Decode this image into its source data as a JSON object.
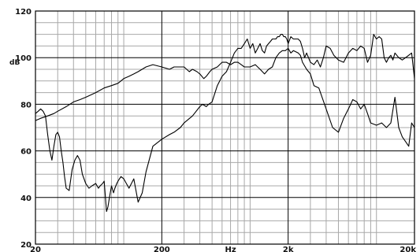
{
  "chart_data": {
    "type": "line",
    "xscale": "log",
    "xlim": [
      20,
      20000
    ],
    "ylim": [
      20,
      120
    ],
    "ylabel": "dB",
    "xunit_label": "Hz",
    "y_ticks": [
      20,
      40,
      60,
      80,
      100,
      120
    ],
    "x_tick_labels": [
      {
        "value": 20,
        "label": "20"
      },
      {
        "value": 200,
        "label": "200"
      },
      {
        "value": 2000,
        "label": "2k"
      },
      {
        "value": 20000,
        "label": "20k"
      }
    ],
    "grid": true,
    "series": [
      {
        "x": [
          20,
          22,
          25,
          28,
          30,
          35,
          40,
          45,
          50,
          60,
          70,
          80,
          90,
          100,
          110,
          120,
          130,
          150,
          170,
          200,
          230,
          250,
          280,
          300,
          330,
          350,
          380,
          400,
          430,
          450,
          480,
          500,
          550,
          600,
          650,
          700,
          750,
          800,
          850,
          900,
          1000,
          1100,
          1200,
          1300,
          1400,
          1500,
          1600,
          1700,
          1800,
          1900,
          2000,
          2100,
          2200,
          2400,
          2500,
          2600,
          2800,
          3000,
          3200,
          3500,
          4000,
          4500,
          5000,
          5500,
          6000,
          6500,
          7000,
          7500,
          8000,
          8500,
          9000,
          10000,
          11000,
          12000,
          13000,
          14000,
          15000,
          16000,
          17000,
          18000,
          19000,
          20000
        ],
        "y": [
          73,
          74,
          75,
          76,
          77,
          79,
          81,
          82,
          83,
          85,
          87,
          88,
          89,
          91,
          92,
          93,
          94,
          96,
          97,
          96,
          95,
          96,
          96,
          96,
          94,
          95,
          94,
          93,
          91,
          92,
          94,
          95,
          96,
          98,
          98,
          97,
          98,
          98,
          97,
          96,
          96,
          97,
          95,
          93,
          95,
          96,
          100,
          102,
          103,
          103,
          104,
          102,
          103,
          102,
          101,
          98,
          95,
          93,
          88,
          87,
          78,
          70,
          68,
          74,
          78,
          82,
          81,
          78,
          80,
          76,
          72,
          71,
          72,
          70,
          72,
          83,
          70,
          66,
          64,
          62,
          72,
          70
        ]
      },
      {
        "x": [
          20,
          21,
          22,
          23,
          24,
          25,
          26,
          27,
          28,
          29,
          30,
          31,
          32,
          33,
          34,
          35,
          37,
          39,
          41,
          43,
          45,
          47,
          50,
          53,
          56,
          60,
          63,
          65,
          68,
          70,
          73,
          75,
          77,
          80,
          83,
          85,
          88,
          90,
          95,
          100,
          110,
          120,
          130,
          140,
          150,
          170,
          200,
          230,
          250,
          280,
          300,
          350,
          400,
          420,
          450,
          470,
          500,
          550,
          600,
          650,
          700,
          750,
          800,
          850,
          900,
          950,
          1000,
          1050,
          1100,
          1150,
          1200,
          1250,
          1300,
          1350,
          1400,
          1450,
          1500,
          1550,
          1600,
          1650,
          1700,
          1750,
          1800,
          1850,
          1900,
          1950,
          2000,
          2100,
          2200,
          2300,
          2400,
          2500,
          2600,
          2700,
          2800,
          3000,
          3200,
          3400,
          3600,
          3800,
          4000,
          4300,
          4600,
          5000,
          5500,
          6000,
          6500,
          7000,
          7500,
          8000,
          8500,
          9000,
          9500,
          10000,
          10500,
          11000,
          11500,
          12000,
          12500,
          13000,
          13500,
          14000,
          15000,
          16000,
          17000,
          18000,
          19000,
          20000
        ],
        "y": [
          76,
          77,
          78,
          77,
          75,
          67,
          60,
          56,
          62,
          67,
          68,
          66,
          60,
          55,
          49,
          44,
          43,
          52,
          56,
          58,
          56,
          50,
          46,
          44,
          45,
          46,
          44,
          45,
          46,
          47,
          34,
          36,
          40,
          45,
          42,
          44,
          46,
          47,
          49,
          48,
          44,
          48,
          38,
          42,
          51,
          62,
          65,
          67,
          68,
          70,
          72,
          75,
          79,
          80,
          79,
          80,
          81,
          88,
          92,
          94,
          98,
          102,
          104,
          104,
          106,
          108,
          104,
          106,
          102,
          104,
          106,
          103,
          102,
          105,
          106,
          107,
          108,
          108,
          108,
          109,
          109,
          110,
          110,
          109,
          109,
          108,
          106,
          109,
          108,
          108,
          108,
          107,
          104,
          100,
          102,
          98,
          97,
          99,
          96,
          100,
          105,
          104,
          101,
          99,
          98,
          102,
          104,
          103,
          105,
          104,
          98,
          101,
          110,
          108,
          109,
          108,
          100,
          98,
          100,
          101,
          99,
          102,
          100,
          99,
          100,
          101,
          102,
          91
        ]
      }
    ]
  }
}
